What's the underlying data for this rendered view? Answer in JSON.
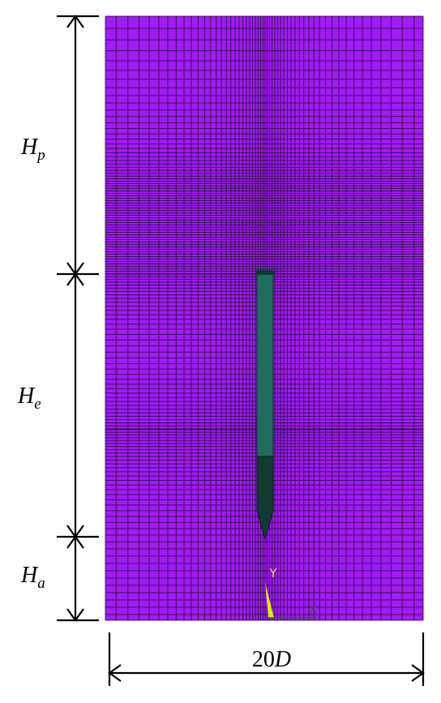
{
  "dimensions": {
    "pile_length_above": {
      "symbol": "H",
      "subscript": "p"
    },
    "pile_embedded": {
      "symbol": "H",
      "subscript": "e"
    },
    "below_pile": {
      "symbol": "H",
      "subscript": "a"
    },
    "width": {
      "factor": "20",
      "symbol": "D"
    }
  },
  "axes": {
    "y": "Y",
    "x": "X"
  }
}
